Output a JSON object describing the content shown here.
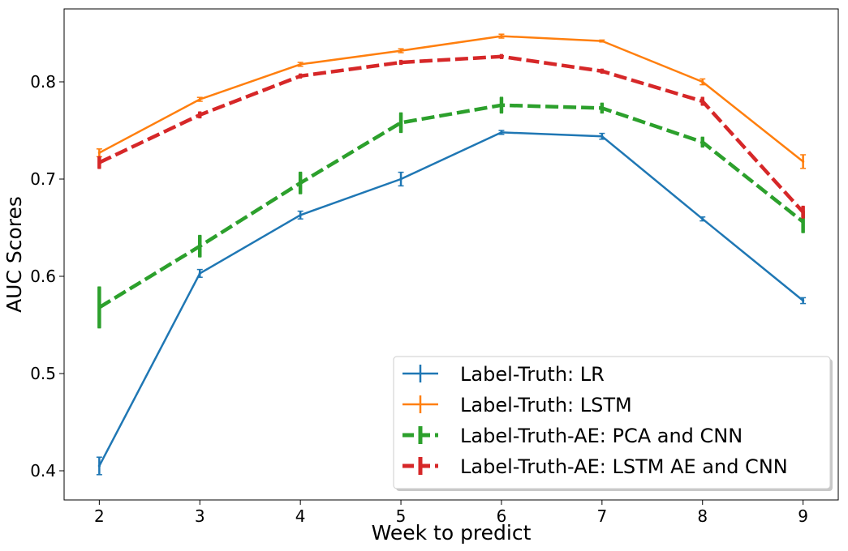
{
  "chart_data": {
    "type": "line",
    "title": "",
    "xlabel": "Week to predict",
    "ylabel": "AUC Scores",
    "x": [
      2,
      3,
      4,
      5,
      6,
      7,
      8,
      9
    ],
    "xlim": [
      1.65,
      9.35
    ],
    "ylim": [
      0.37,
      0.875
    ],
    "xticks": [
      2,
      3,
      4,
      5,
      6,
      7,
      8,
      9
    ],
    "yticks": [
      0.4,
      0.5,
      0.6,
      0.7,
      0.8
    ],
    "grid": false,
    "legend_position": "lower-right",
    "series": [
      {
        "name": "Label-Truth: LR",
        "color": "#1f77b4",
        "dashed": false,
        "values": [
          0.405,
          0.603,
          0.663,
          0.7,
          0.748,
          0.744,
          0.659,
          0.575
        ],
        "errors": [
          0.009,
          0.004,
          0.004,
          0.007,
          0.002,
          0.003,
          0.002,
          0.003
        ]
      },
      {
        "name": "Label-Truth: LSTM",
        "color": "#ff7f0e",
        "dashed": false,
        "values": [
          0.727,
          0.782,
          0.818,
          0.832,
          0.847,
          0.842,
          0.8,
          0.718
        ],
        "errors": [
          0.004,
          0.002,
          0.002,
          0.002,
          0.002,
          0.001,
          0.003,
          0.007
        ]
      },
      {
        "name": "Label-Truth-AE: PCA and CNN",
        "color": "#2ca02c",
        "dashed": true,
        "values": [
          0.568,
          0.631,
          0.696,
          0.758,
          0.776,
          0.773,
          0.738,
          0.656
        ],
        "errors": [
          0.021,
          0.011,
          0.011,
          0.01,
          0.008,
          0.005,
          0.005,
          0.011
        ]
      },
      {
        "name": "Label-Truth-AE: LSTM AE and CNN",
        "color": "#d62728",
        "dashed": true,
        "values": [
          0.717,
          0.766,
          0.806,
          0.82,
          0.826,
          0.811,
          0.78,
          0.666
        ],
        "errors": [
          0.006,
          0.003,
          0.002,
          0.002,
          0.002,
          0.002,
          0.004,
          0.006
        ]
      }
    ]
  }
}
